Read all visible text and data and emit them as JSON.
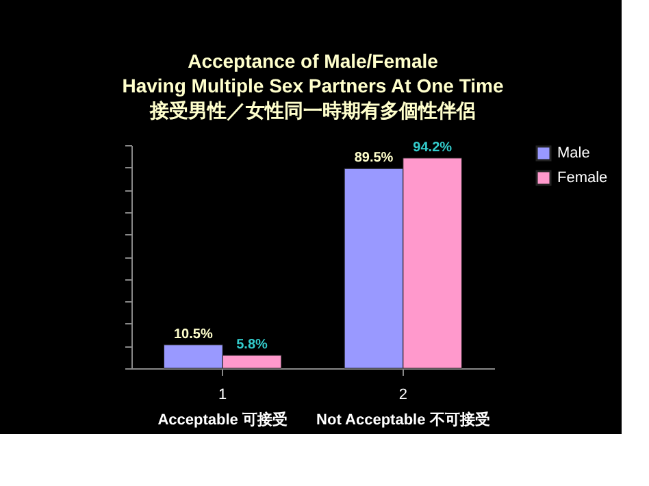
{
  "chart_data": {
    "type": "bar",
    "title": "Acceptance of Male/Female\nHaving Multiple Sex Partners At One Time\n接受男性／女性同一時期有多個性伴侶",
    "categories": [
      "1",
      "2"
    ],
    "series": [
      {
        "name": "Male",
        "color": "#9999ff",
        "values": [
          10.5,
          89.5
        ],
        "value_labels": [
          "10.5%",
          "89.5%"
        ]
      },
      {
        "name": "Female",
        "color": "#ff99cc",
        "values": [
          5.8,
          94.2
        ],
        "value_labels": [
          "5.8%",
          "94.2%"
        ]
      }
    ],
    "annotations": [
      "Acceptable 可接受",
      "Not Acceptable 不可接受"
    ],
    "tick_labels": "x",
    "legend": "right"
  }
}
